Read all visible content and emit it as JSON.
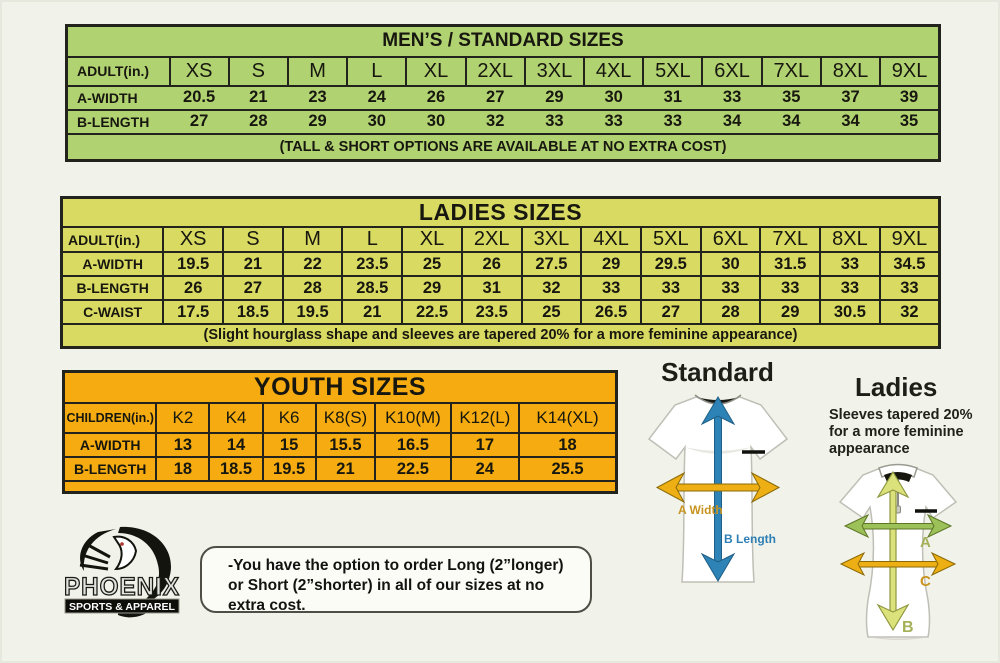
{
  "colors": {
    "page_bg": "#f1f2ea",
    "table_border": "#23231d",
    "men_fill": "#b1d271",
    "ladies_fill": "#d9da62",
    "youth_fill": "#f6ac10",
    "arrow_blue": "#2d83b5",
    "arrow_gold": "#eeaf15",
    "arrow_green": "#9cc158",
    "arrow_pale": "#dce27b",
    "label_gold": "#c8941f",
    "label_blue": "#2d7fb5",
    "label_olive": "#a5b058"
  },
  "tables": {
    "men": {
      "title": "MEN’S / STANDARD SIZES",
      "row_header": "ADULT(in.)",
      "sizes": [
        "XS",
        "S",
        "M",
        "L",
        "XL",
        "2XL",
        "3XL",
        "4XL",
        "5XL",
        "6XL",
        "7XL",
        "8XL",
        "9XL"
      ],
      "rows": [
        {
          "label": "A-WIDTH",
          "values": [
            "20.5",
            "21",
            "23",
            "24",
            "26",
            "27",
            "29",
            "30",
            "31",
            "33",
            "35",
            "37",
            "39"
          ]
        },
        {
          "label": "B-LENGTH",
          "values": [
            "27",
            "28",
            "29",
            "30",
            "30",
            "32",
            "33",
            "33",
            "33",
            "34",
            "34",
            "34",
            "35"
          ]
        }
      ],
      "footnote": "(TALL & SHORT OPTIONS ARE AVAILABLE AT NO EXTRA COST)",
      "fill": "#b1d271",
      "col_widths": [
        "11.8%"
      ]
    },
    "ladies": {
      "title": "LADIES SIZES",
      "row_header": "ADULT(in.)",
      "sizes": [
        "XS",
        "S",
        "M",
        "L",
        "XL",
        "2XL",
        "3XL",
        "4XL",
        "5XL",
        "6XL",
        "7XL",
        "8XL",
        "9XL"
      ],
      "rows": [
        {
          "label": "A-WIDTH",
          "values": [
            "19.5",
            "21",
            "22",
            "23.5",
            "25",
            "26",
            "27.5",
            "29",
            "29.5",
            "30",
            "31.5",
            "33",
            "34.5"
          ]
        },
        {
          "label": "B-LENGTH",
          "values": [
            "26",
            "27",
            "28",
            "28.5",
            "29",
            "31",
            "32",
            "33",
            "33",
            "33",
            "33",
            "33",
            "33"
          ]
        },
        {
          "label": "C-WAIST",
          "values": [
            "17.5",
            "18.5",
            "19.5",
            "21",
            "22.5",
            "23.5",
            "25",
            "26.5",
            "27",
            "28",
            "29",
            "30.5",
            "32"
          ]
        }
      ],
      "footnote": "(Slight hourglass shape and sleeves are tapered 20% for a more feminine appearance)",
      "fill": "#d9da62",
      "col_widths": [
        "11.6%"
      ]
    },
    "youth": {
      "title": "YOUTH SIZES",
      "row_header": "CHILDREN(in.)",
      "sizes": [
        "K2",
        "K4",
        "K6",
        "K8(S)",
        "K10(M)",
        "K12(L)",
        "K14(XL)"
      ],
      "rows": [
        {
          "label": "A-WIDTH",
          "values": [
            "13",
            "14",
            "15",
            "15.5",
            "16.5",
            "17",
            "18"
          ]
        },
        {
          "label": "B-LENGTH",
          "values": [
            "18",
            "18.5",
            "19.5",
            "21",
            "22.5",
            "24",
            "25.5"
          ]
        }
      ],
      "footnote": "",
      "pad": true,
      "fill": "#f6ac10",
      "col_widths": [
        "16.8%",
        "9.6%",
        "9.6%",
        "9.6%",
        "10.8%",
        "13.6%",
        "12.4%"
      ]
    }
  },
  "diagrams": {
    "standard": {
      "title": "Standard",
      "width_label": "A Width",
      "length_label": "B Length"
    },
    "ladies": {
      "title": "Ladies",
      "note_lines": [
        "Sleeves tapered 20%",
        " for a more feminine",
        "appearance"
      ],
      "label_a": "A",
      "label_b": "B",
      "label_c": "C"
    }
  },
  "logo": {
    "brand": "PHOENIX",
    "tagline": "SPORTS & APPAREL"
  },
  "note_box": {
    "lines": [
      "-You have the option to order Long (2”longer)",
      "or Short (2”shorter) in all of our sizes at no",
      "extra cost."
    ]
  }
}
